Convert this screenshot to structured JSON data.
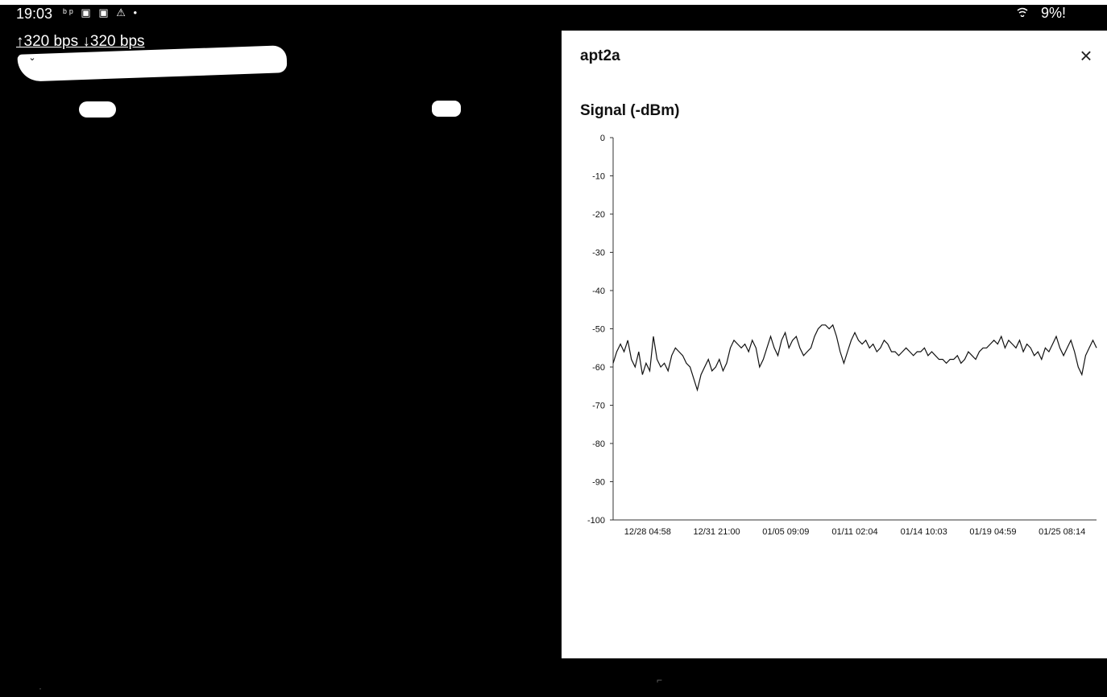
{
  "status_bar": {
    "time": "19:03",
    "notification_icons": "ᵇᵖ ▣ ▣ ⚠ •",
    "battery": "9%!",
    "network_speed": "↑320 bps ↓320 bps"
  },
  "panel": {
    "title": "apt2a",
    "close_label": "×",
    "section_title": "Signal (-dBm)"
  },
  "chart_data": {
    "type": "line",
    "title": "Signal (-dBm)",
    "ylim": [
      -100,
      0
    ],
    "yticks": [
      0,
      -10,
      -20,
      -30,
      -40,
      -50,
      -60,
      -70,
      -80,
      -90,
      -100
    ],
    "xtick_labels": [
      "12/28 04:58",
      "12/31 21:00",
      "01/05 09:09",
      "01/11 02:04",
      "01/14 10:03",
      "01/19 04:59",
      "01/25 08:14"
    ],
    "grid": false,
    "series": [
      {
        "color": "#111111",
        "values": [
          -59,
          -56,
          -54,
          -56,
          -53,
          -58,
          -60,
          -56,
          -62,
          -59,
          -61,
          -52,
          -58,
          -60,
          -59,
          -61,
          -57,
          -55,
          -56,
          -57,
          -59,
          -60,
          -63,
          -66,
          -62,
          -60,
          -58,
          -61,
          -60,
          -58,
          -61,
          -59,
          -55,
          -53,
          -54,
          -55,
          -54,
          -56,
          -53,
          -55,
          -60,
          -58,
          -55,
          -52,
          -55,
          -57,
          -53,
          -51,
          -55,
          -53,
          -52,
          -55,
          -57,
          -56,
          -55,
          -52,
          -50,
          -49,
          -49,
          -50,
          -49,
          -52,
          -56,
          -59,
          -56,
          -53,
          -51,
          -53,
          -54,
          -53,
          -55,
          -54,
          -56,
          -55,
          -53,
          -54,
          -56,
          -56,
          -57,
          -56,
          -55,
          -56,
          -57,
          -56,
          -56,
          -55,
          -57,
          -56,
          -57,
          -58,
          -58,
          -59,
          -58,
          -58,
          -57,
          -59,
          -58,
          -56,
          -57,
          -58,
          -56,
          -55,
          -55,
          -54,
          -53,
          -54,
          -52,
          -55,
          -53,
          -54,
          -55,
          -53,
          -56,
          -54,
          -55,
          -57,
          -56,
          -58,
          -55,
          -56,
          -54,
          -52,
          -55,
          -57,
          -55,
          -53,
          -56,
          -60,
          -62,
          -57,
          -55,
          -53,
          -55
        ]
      }
    ]
  }
}
